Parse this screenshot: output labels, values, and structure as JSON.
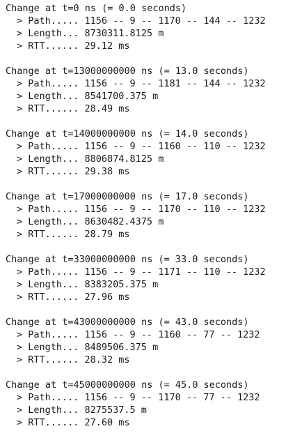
{
  "blocks": [
    {
      "header": "Change at t=0 ns (= 0.0 seconds)",
      "path": "> Path..... 1156 -- 9 -- 1170 -- 144 -- 1232",
      "length": "> Length... 8730311.8125 m",
      "rtt": "> RTT...... 29.12 ms"
    },
    {
      "header": "Change at t=13000000000 ns (= 13.0 seconds)",
      "path": "> Path..... 1156 -- 9 -- 1181 -- 144 -- 1232",
      "length": "> Length... 8541700.375 m",
      "rtt": "> RTT...... 28.49 ms"
    },
    {
      "header": "Change at t=14000000000 ns (= 14.0 seconds)",
      "path": "> Path..... 1156 -- 9 -- 1160 -- 110 -- 1232",
      "length": "> Length... 8806874.8125 m",
      "rtt": "> RTT...... 29.38 ms"
    },
    {
      "header": "Change at t=17000000000 ns (= 17.0 seconds)",
      "path": "> Path..... 1156 -- 9 -- 1170 -- 110 -- 1232",
      "length": "> Length... 8630482.4375 m",
      "rtt": "> RTT...... 28.79 ms"
    },
    {
      "header": "Change at t=33000000000 ns (= 33.0 seconds)",
      "path": "> Path..... 1156 -- 9 -- 1171 -- 110 -- 1232",
      "length": "> Length... 8383205.375 m",
      "rtt": "> RTT...... 27.96 ms"
    },
    {
      "header": "Change at t=43000000000 ns (= 43.0 seconds)",
      "path": "> Path..... 1156 -- 9 -- 1160 -- 77 -- 1232",
      "length": "> Length... 8489506.375 m",
      "rtt": "> RTT...... 28.32 ms"
    },
    {
      "header": "Change at t=45000000000 ns (= 45.0 seconds)",
      "path": "> Path..... 1156 -- 9 -- 1170 -- 77 -- 1232",
      "length": "> Length... 8275537.5 m",
      "rtt": "> RTT...... 27.60 ms"
    }
  ]
}
